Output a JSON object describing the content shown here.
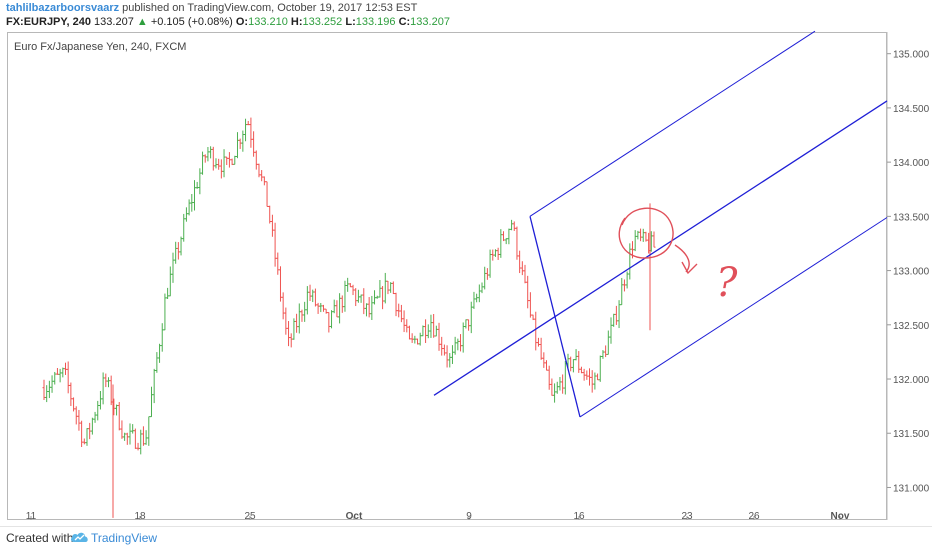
{
  "header": {
    "author": "tahlilbazarboorsvaarz",
    "published_text": "published on TradingView.com, October 19, 2017 12:53 EST",
    "symbol": "FX:EURJPY, 240",
    "last": "133.207",
    "change_arrow": "▲",
    "change": "+0.105 (+0.08%)",
    "o_label": "O:",
    "o_value": "133.210",
    "h_label": "H:",
    "h_value": "133.252",
    "l_label": "L:",
    "l_value": "133.196",
    "c_label": "C:",
    "c_value": "133.207"
  },
  "footer": {
    "created_with": "Created with",
    "brand": "TradingView"
  },
  "chart_data": {
    "type": "ohlc",
    "title": "Euro Fx/Japanese Yen, 240, FXCM",
    "x_ticks": [
      "11",
      "18",
      "25",
      "Oct",
      "9",
      "16",
      "23",
      "26",
      "Nov"
    ],
    "y_ticks": [
      "131.000",
      "131.500",
      "132.000",
      "132.500",
      "133.000",
      "133.500",
      "134.000",
      "134.500",
      "135.000"
    ],
    "ylim": [
      130.7,
      135.2
    ],
    "grid": false,
    "up_color": "#4caf50",
    "down_color": "#ef5350",
    "drawing_color": "#1f1fd6",
    "annotation_color": "#e0505a",
    "annotation_text": "?",
    "segments": [
      [
        131.92,
        131.95,
        132.02,
        132.05
      ],
      [
        132.05,
        131.15,
        131.28,
        131.4
      ],
      [
        131.4,
        131.95,
        132.02,
        132.0
      ],
      [
        132.0,
        131.3,
        131.35,
        131.45
      ],
      [
        131.45,
        130.75,
        131.3,
        131.45
      ],
      [
        131.45,
        132.15,
        132.5,
        132.78
      ],
      [
        132.78,
        133.05,
        133.35,
        133.5
      ],
      [
        133.5,
        133.8,
        134.05,
        134.1
      ],
      [
        134.1,
        133.75,
        133.85,
        133.95
      ],
      [
        133.95,
        134.3,
        134.35,
        134.4
      ],
      [
        134.4,
        133.95,
        133.85,
        133.6
      ],
      [
        133.6,
        132.2,
        132.05,
        132.3
      ],
      [
        132.3,
        132.55,
        132.7,
        132.8
      ],
      [
        132.8,
        132.55,
        132.45,
        132.5
      ],
      [
        132.5,
        132.75,
        132.8,
        132.85
      ],
      [
        132.85,
        132.5,
        132.4,
        132.6
      ],
      [
        132.6,
        132.75,
        132.95,
        132.9
      ],
      [
        132.9,
        132.5,
        132.4,
        132.3
      ],
      [
        132.3,
        132.6,
        132.7,
        132.55
      ],
      [
        132.55,
        132.25,
        132.15,
        132.15
      ],
      [
        132.15,
        132.3,
        132.45,
        132.6
      ],
      [
        132.6,
        132.85,
        132.95,
        133.1
      ],
      [
        133.1,
        133.35,
        133.5,
        133.45
      ],
      [
        133.45,
        133.0,
        132.75,
        132.5
      ],
      [
        132.5,
        132.05,
        131.85,
        131.8
      ],
      [
        131.8,
        132.0,
        132.25,
        132.2
      ],
      [
        132.2,
        132.05,
        131.9,
        131.95
      ],
      [
        131.95,
        132.2,
        132.35,
        132.5
      ],
      [
        132.5,
        132.85,
        133.15,
        133.3
      ],
      [
        133.3,
        133.2,
        133.1,
        133.22
      ]
    ]
  }
}
